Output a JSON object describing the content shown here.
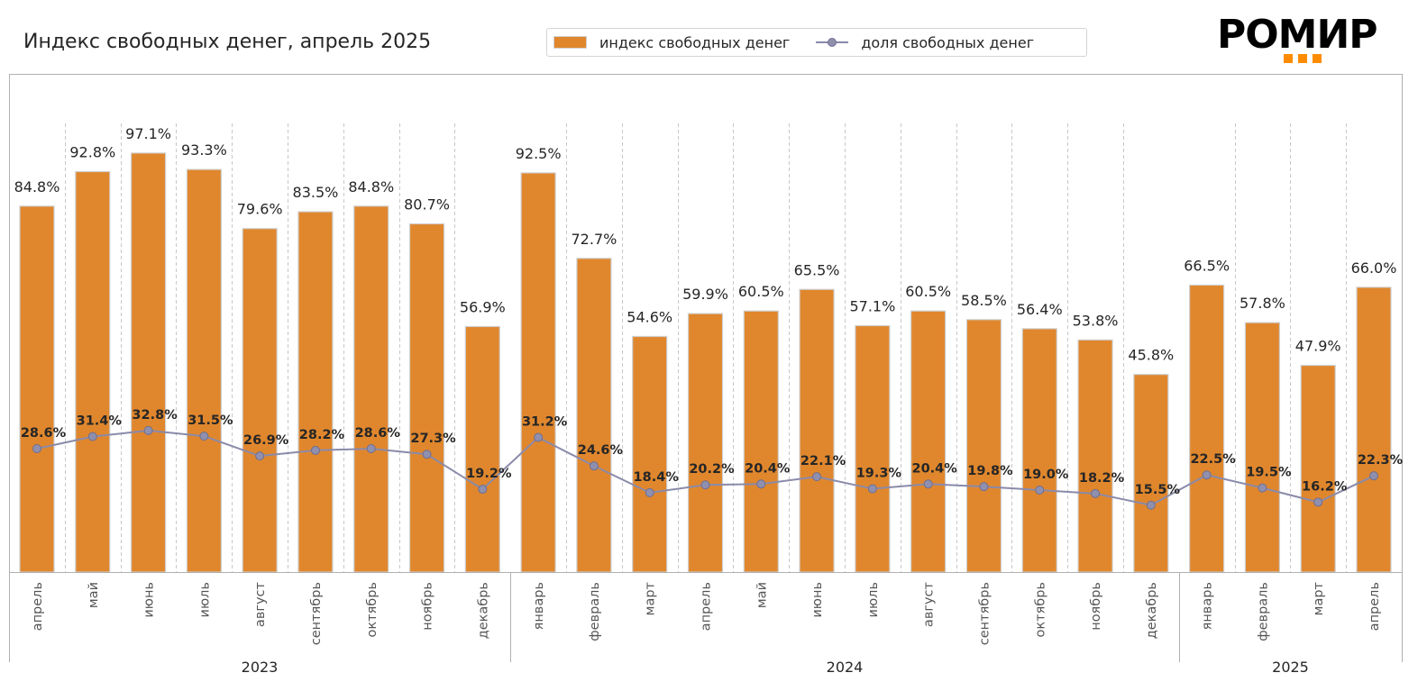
{
  "header": {
    "title": "Индекс свободных денег, апрель 2025",
    "logo_text": "РОМИР",
    "logo_icon": "three-orange-squares"
  },
  "colors": {
    "bar": "#E0872D",
    "bar_edge": "#CFCFCF",
    "line": "#8A8AAA",
    "marker": "#9090AE",
    "marker_edge": "#6E6E90",
    "logo_accent": "#FF8C00"
  },
  "legend": {
    "items": [
      {
        "label": "индекс свободных денег",
        "kind": "bar"
      },
      {
        "label": "доля свободных денег",
        "kind": "line"
      }
    ]
  },
  "chart_data": {
    "type": "bar+line",
    "title": "Индекс свободных денег, апрель 2025",
    "xlabel": "",
    "ylabel": "",
    "ylim": [
      0,
      115
    ],
    "grid": "vertical dashed between categories",
    "legend_position": "top-center",
    "categories": [
      "апрель",
      "май",
      "июнь",
      "июль",
      "август",
      "сентябрь",
      "октябрь",
      "ноябрь",
      "декабрь",
      "январь",
      "февраль",
      "март",
      "апрель",
      "май",
      "июнь",
      "июль",
      "август",
      "сентябрь",
      "октябрь",
      "ноябрь",
      "декабрь",
      "январь",
      "февраль",
      "март",
      "апрель"
    ],
    "year_groups": [
      {
        "label": "2023",
        "count": 9
      },
      {
        "label": "2024",
        "count": 12
      },
      {
        "label": "2025",
        "count": 4
      }
    ],
    "series": [
      {
        "name": "индекс свободных денег",
        "type": "bar",
        "values": [
          84.8,
          92.8,
          97.1,
          93.3,
          79.6,
          83.5,
          84.8,
          80.7,
          56.9,
          92.5,
          72.7,
          54.6,
          59.9,
          60.5,
          65.5,
          57.1,
          60.5,
          58.5,
          56.4,
          53.8,
          45.8,
          66.5,
          57.8,
          47.9,
          66.0
        ],
        "labels": [
          "84.8%",
          "92.8%",
          "97.1%",
          "93.3%",
          "79.6%",
          "83.5%",
          "84.8%",
          "80.7%",
          "56.9%",
          "92.5%",
          "72.7%",
          "54.6%",
          "59.9%",
          "60.5%",
          "65.5%",
          "57.1%",
          "60.5%",
          "58.5%",
          "56.4%",
          "53.8%",
          "45.8%",
          "66.5%",
          "57.8%",
          "47.9%",
          "66.0%"
        ]
      },
      {
        "name": "доля свободных денег",
        "type": "line",
        "values": [
          28.6,
          31.4,
          32.8,
          31.5,
          26.9,
          28.2,
          28.6,
          27.3,
          19.2,
          31.2,
          24.6,
          18.4,
          20.2,
          20.4,
          22.1,
          19.3,
          20.4,
          19.8,
          19.0,
          18.2,
          15.5,
          22.5,
          19.5,
          16.2,
          22.3
        ],
        "labels": [
          "28.6%",
          "31.4%",
          "32.8%",
          "31.5%",
          "26.9%",
          "28.2%",
          "28.6%",
          "27.3%",
          "19.2%",
          "31.2%",
          "24.6%",
          "18.4%",
          "20.2%",
          "20.4%",
          "22.1%",
          "19.3%",
          "20.4%",
          "19.8%",
          "19.0%",
          "18.2%",
          "15.5%",
          "22.5%",
          "19.5%",
          "16.2%",
          "22.3%"
        ]
      }
    ]
  }
}
